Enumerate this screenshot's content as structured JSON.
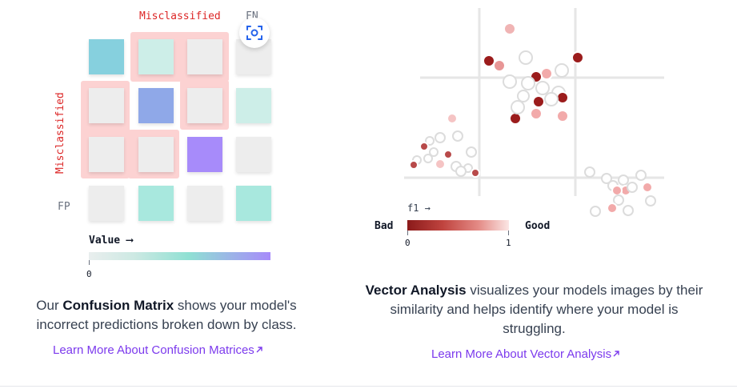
{
  "confusion_matrix": {
    "misclassified_top": "Misclassified",
    "fn_label": "FN",
    "misclassified_side": "Misclassified",
    "fp_label": "FP",
    "value_axis_label": "Value ⟶",
    "scale_min": "0",
    "focus_icon": "focus-camera-icon",
    "cells": [
      [
        "#86d0de",
        "#cdeee8",
        "#ededed",
        "#ededed"
      ],
      [
        "#ededed",
        "#8fa8e8",
        "#ededed",
        "#cdeee8"
      ],
      [
        "#ededed",
        "#ededed",
        "#a78bfa",
        "#ededed"
      ],
      [
        "#ededed",
        "#a8e8de",
        "#ededed",
        "#a8e8de"
      ]
    ]
  },
  "confusion_caption": {
    "prefix": "Our ",
    "bold": "Confusion Matrix",
    "suffix": " shows your model's incorrect predictions broken down by class.",
    "link": "Learn More About Confusion Matrices",
    "link_icon": "external-arrow-icon"
  },
  "vector_analysis": {
    "f1_label": "f1 →",
    "bad_label": "Bad",
    "good_label": "Good",
    "scale_min": "0",
    "scale_max": "1"
  },
  "vector_caption": {
    "bold": "Vector Analysis",
    "suffix": " visualizes your models images by their similarity and helps identify where your model is struggling.",
    "link": "Learn More About Vector Analysis",
    "link_icon": "external-arrow-icon"
  },
  "colors": {
    "accent_link": "#7c3aed",
    "misclassified": "#dc2626",
    "highlight": "#fcd2d2"
  }
}
